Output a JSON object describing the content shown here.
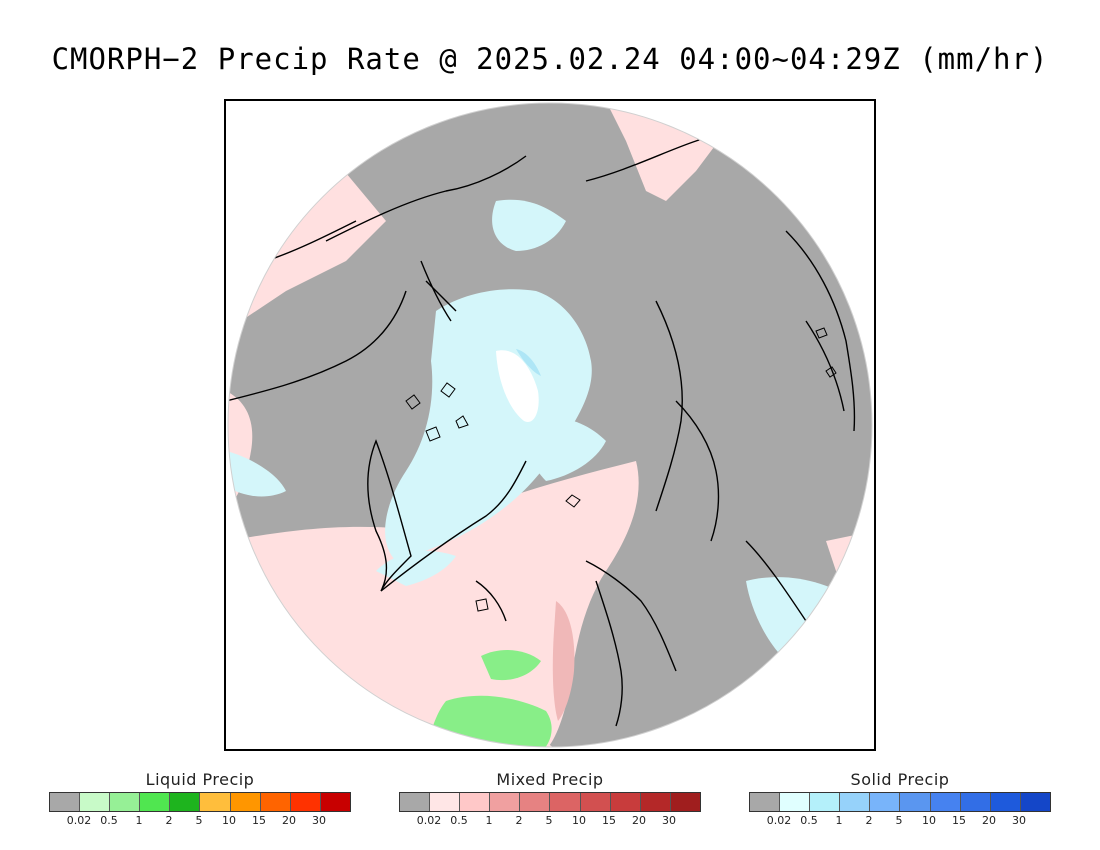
{
  "title": "CMORPH−2 Precip Rate @ 2025.02.24 04:00~04:29Z (mm/hr)",
  "map": {
    "projection": "north polar stereographic",
    "colors": {
      "no_precip": "#a8a8a8",
      "mixed_light": "#ffe0e0",
      "solid_light": "#d4f6fa",
      "liquid_light": "#88ee88",
      "outside": "#ffffff",
      "coastline": "#000000"
    }
  },
  "legends": [
    {
      "title": "Liquid Precip",
      "ticks": [
        "0.02",
        "0.5",
        "1",
        "2",
        "5",
        "10",
        "15",
        "20",
        "30"
      ],
      "colors": [
        "#a8a8a8",
        "#c8fac8",
        "#96f096",
        "#50e650",
        "#1eb41e",
        "#ffbe3c",
        "#ff9600",
        "#ff6400",
        "#ff3200",
        "#c80000"
      ]
    },
    {
      "title": "Mixed Precip",
      "ticks": [
        "0.02",
        "0.5",
        "1",
        "2",
        "5",
        "10",
        "15",
        "20",
        "30"
      ],
      "colors": [
        "#a8a8a8",
        "#ffe6e6",
        "#ffc8c8",
        "#f0a0a0",
        "#e68282",
        "#dc6464",
        "#d25050",
        "#c83c3c",
        "#b42828",
        "#a01e1e"
      ]
    },
    {
      "title": "Solid Precip",
      "ticks": [
        "0.02",
        "0.5",
        "1",
        "2",
        "5",
        "10",
        "15",
        "20",
        "30"
      ],
      "colors": [
        "#a8a8a8",
        "#e0ffff",
        "#b4f0fa",
        "#96d2fa",
        "#78b4fa",
        "#5a96f0",
        "#4682f0",
        "#326ee6",
        "#1e5adc",
        "#1446c8"
      ]
    }
  ]
}
